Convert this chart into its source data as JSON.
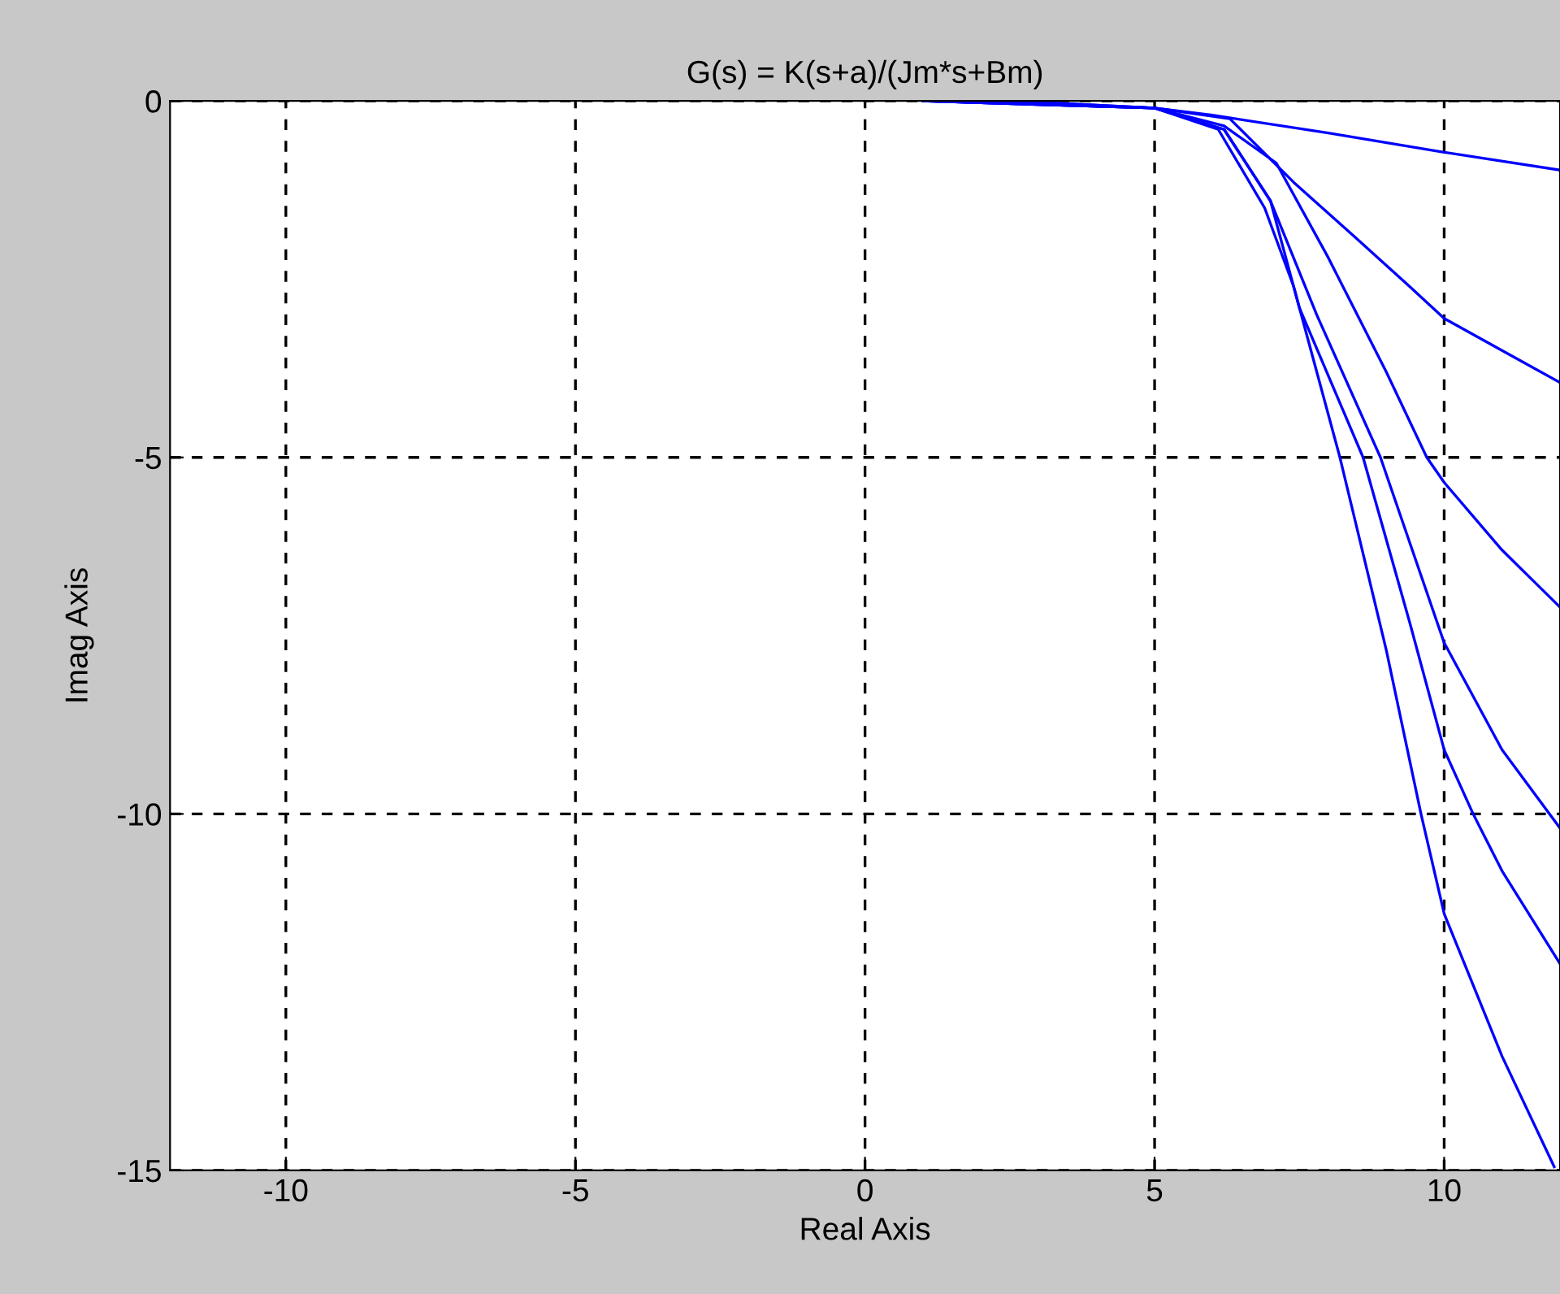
{
  "chart_data": {
    "type": "line",
    "title": "G(s) = K(s+a)/(Jm*s+Bm)",
    "xlabel": "Real Axis",
    "ylabel": "Imag Axis",
    "xlim": [
      -12,
      12
    ],
    "ylim": [
      -15,
      0
    ],
    "xticks": [
      -10,
      -5,
      0,
      5,
      10
    ],
    "yticks": [
      -15,
      -10,
      -5,
      0
    ],
    "grid": true,
    "line_style": "solid",
    "marker": "none",
    "series": [
      {
        "color": "#0000ff",
        "x": [
          1,
          3,
          5,
          6,
          8,
          10,
          12
        ],
        "values": [
          0,
          -0.02,
          -0.1,
          -0.2,
          -0.45,
          -0.72,
          -0.97
        ]
      },
      {
        "color": "#0000ff",
        "x": [
          1,
          3,
          5,
          6.3,
          7.4,
          8.5,
          9.4,
          10,
          11,
          12
        ],
        "values": [
          0,
          -0.02,
          -0.1,
          -0.25,
          -1.14,
          -1.94,
          -2.6,
          -3.05,
          -3.5,
          -3.95
        ]
      },
      {
        "color": "#0000ff",
        "x": [
          1,
          5,
          6.2,
          7.1,
          8,
          9,
          9.7,
          10,
          11,
          12
        ],
        "values": [
          0,
          -0.1,
          -0.35,
          -0.87,
          -2.2,
          -3.8,
          -5,
          -5.35,
          -6.3,
          -7.1
        ]
      },
      {
        "color": "#0000ff",
        "x": [
          1,
          5,
          6.2,
          7.0,
          7.8,
          8.9,
          10,
          11,
          12
        ],
        "values": [
          0,
          -0.1,
          -0.4,
          -1.4,
          -3,
          -5,
          -7.6,
          -9.1,
          -10.2
        ]
      },
      {
        "color": "#0000ff",
        "x": [
          1,
          5,
          6.2,
          7.0,
          7.5,
          8.6,
          9.4,
          10,
          10.5,
          11,
          12
        ],
        "values": [
          0,
          -0.1,
          -0.4,
          -1.4,
          -2.9,
          -5,
          -7.3,
          -9.1,
          -10,
          -10.8,
          -12.1
        ]
      },
      {
        "color": "#0000ff",
        "x": [
          1,
          5,
          6.1,
          6.9,
          7.4,
          8.2,
          9,
          9.6,
          10,
          11,
          11.9
        ],
        "values": [
          0,
          -0.1,
          -0.4,
          -1.5,
          -2.6,
          -5,
          -7.7,
          -10,
          -11.4,
          -13.4,
          -14.95
        ]
      }
    ]
  }
}
